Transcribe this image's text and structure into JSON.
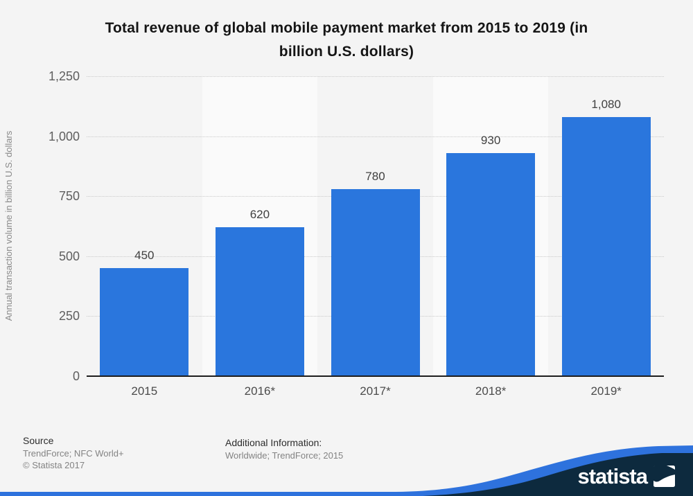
{
  "title": "Total revenue of global mobile payment market from 2015 to 2019 (in\nbillion U.S. dollars)",
  "chart_data": {
    "type": "bar",
    "title": "Total revenue of global mobile payment market from 2015 to 2019 (in billion U.S. dollars)",
    "categories": [
      "2015",
      "2016*",
      "2017*",
      "2018*",
      "2019*"
    ],
    "values": [
      450,
      620,
      780,
      930,
      1080
    ],
    "value_labels": [
      "450",
      "620",
      "780",
      "930",
      "1,080"
    ],
    "xlabel": "",
    "ylabel": "Annual transaction volume in billion U.S. dollars",
    "ylim": [
      0,
      1250
    ],
    "ytick_step": 250,
    "ytick_labels": [
      "1,250",
      "1,000",
      "750",
      "500",
      "250",
      "0"
    ],
    "grid": "horizontal-dotted",
    "legend": "none",
    "bar_color": "#2a76dd",
    "band_color": "#fafafa",
    "background_color": "#f4f4f4"
  },
  "footer": {
    "source_heading": "Source",
    "source_line1": "TrendForce; NFC World+",
    "source_line2": "© Statista 2017",
    "additional_heading": "Additional Information:",
    "additional_line1": "Worldwide; TrendForce; 2015"
  },
  "branding": {
    "logo_text": "statista",
    "navy_color": "#0d2a3e",
    "wave_blue_color": "#2e72dd"
  }
}
